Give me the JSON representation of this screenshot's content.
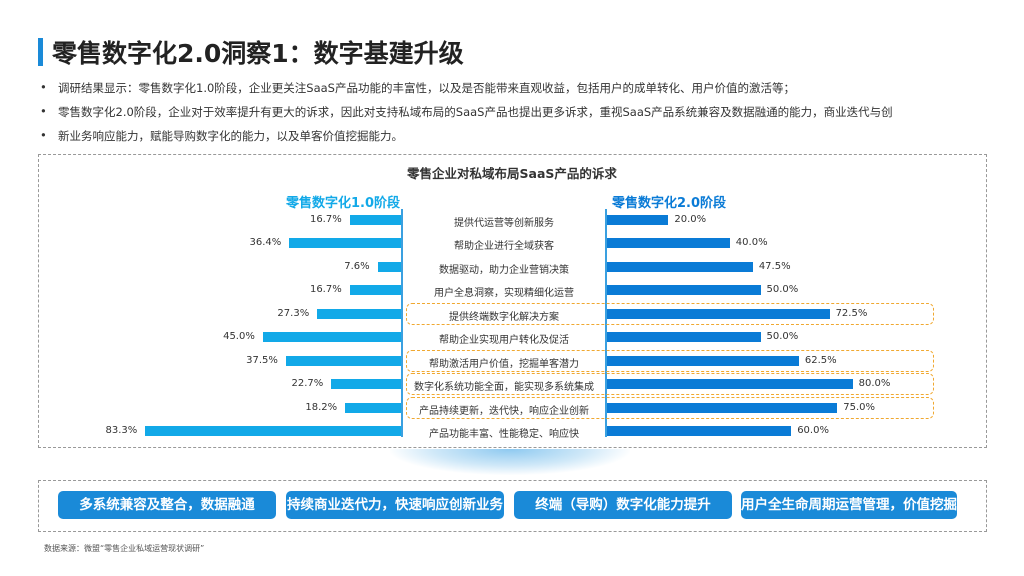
{
  "title": "零售数字化2.0洞察1：数字基建升级",
  "bullets": [
    "调研结果显示：零售数字化1.0阶段，企业更关注SaaS产品功能的丰富性，以及是否能带来直观收益，包括用户的成单转化、用户价值的激活等；",
    "零售数字化2.0阶段，企业对于效率提升有更大的诉求，因此对支持私域布局的SaaS产品也提出更多诉求，重视SaaS产品系统兼容及数据融通的能力，商业迭代与创",
    "新业务响应能力，赋能导购数字化的能力，以及单客价值挖掘能力。"
  ],
  "chart_data": {
    "type": "bar",
    "title": "零售企业对私域布局SaaS产品的诉求",
    "orientation": "horizontal-butterfly",
    "categories": [
      "提供代运营等创新服务",
      "帮助企业进行全域获客",
      "数据驱动，助力企业营销决策",
      "用户全息洞察，实现精细化运营",
      "提供终端数字化解决方案",
      "帮助企业实现用户转化及促活",
      "帮助激活用户价值，挖掘单客潜力",
      "数字化系统功能全面，能实现多系统集成",
      "产品持续更新，迭代快，响应企业创新",
      "产品功能丰富、性能稳定、响应快"
    ],
    "series": [
      {
        "name": "零售数字化1.0阶段",
        "color": "#12a9e8",
        "values": [
          16.7,
          36.4,
          7.6,
          16.7,
          27.3,
          45.0,
          37.5,
          22.7,
          18.2,
          83.3
        ],
        "labels": [
          "16.7%",
          "36.4%",
          "7.6%",
          "16.7%",
          "27.3%",
          "45.0%",
          "37.5%",
          "22.7%",
          "18.2%",
          "83.3%"
        ]
      },
      {
        "name": "零售数字化2.0阶段",
        "color": "#0a7bd6",
        "values": [
          20.0,
          40.0,
          47.5,
          50.0,
          72.5,
          50.0,
          62.5,
          80.0,
          75.0,
          60.0
        ],
        "labels": [
          "20.0%",
          "40.0%",
          "47.5%",
          "50.0%",
          "72.5%",
          "50.0%",
          "62.5%",
          "80.0%",
          "75.0%",
          "60.0%"
        ]
      }
    ],
    "highlighted_categories": [
      4,
      6,
      7,
      8
    ],
    "highlight_color": "#f0a830",
    "xlim": [
      0,
      100
    ]
  },
  "conclusions": [
    "多系统兼容及整合，数据融通",
    "持续商业迭代力，快速响应创新业务",
    "终端（导购）数字化能力提升",
    "用户全生命周期运营管理，价值挖掘"
  ],
  "source": "数据来源：微盟“零售企业私域运营现状调研”"
}
